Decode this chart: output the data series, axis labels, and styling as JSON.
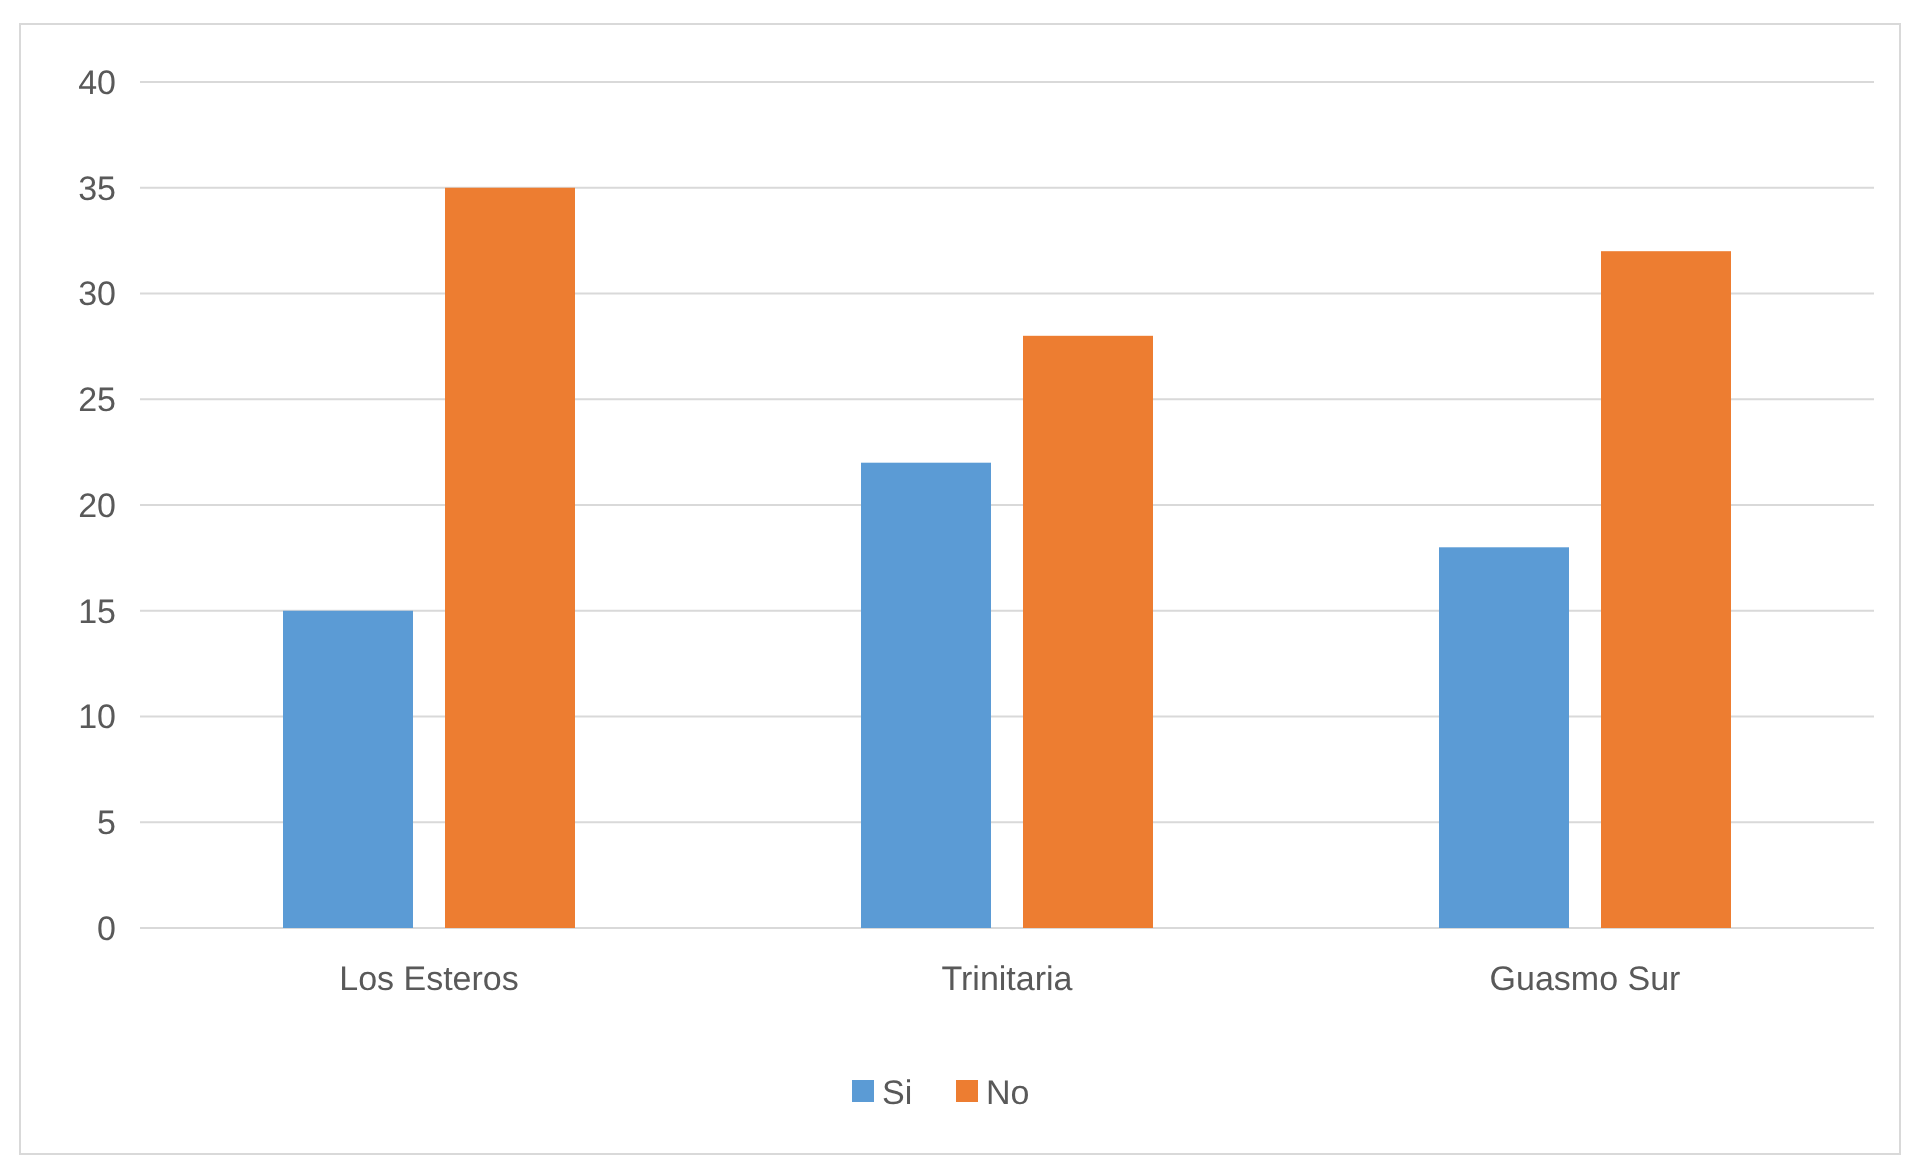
{
  "chart_data": {
    "type": "bar",
    "categories": [
      "Los Esteros",
      "Trinitaria",
      "Guasmo Sur"
    ],
    "series": [
      {
        "name": "Si",
        "color": "#5b9bd5",
        "values": [
          15,
          22,
          18
        ]
      },
      {
        "name": "No",
        "color": "#ed7d31",
        "values": [
          35,
          28,
          32
        ]
      }
    ],
    "ylim": [
      0,
      40
    ],
    "yticks": [
      0,
      5,
      10,
      15,
      20,
      25,
      30,
      35,
      40
    ],
    "grid": "y",
    "legend": "bottom"
  }
}
